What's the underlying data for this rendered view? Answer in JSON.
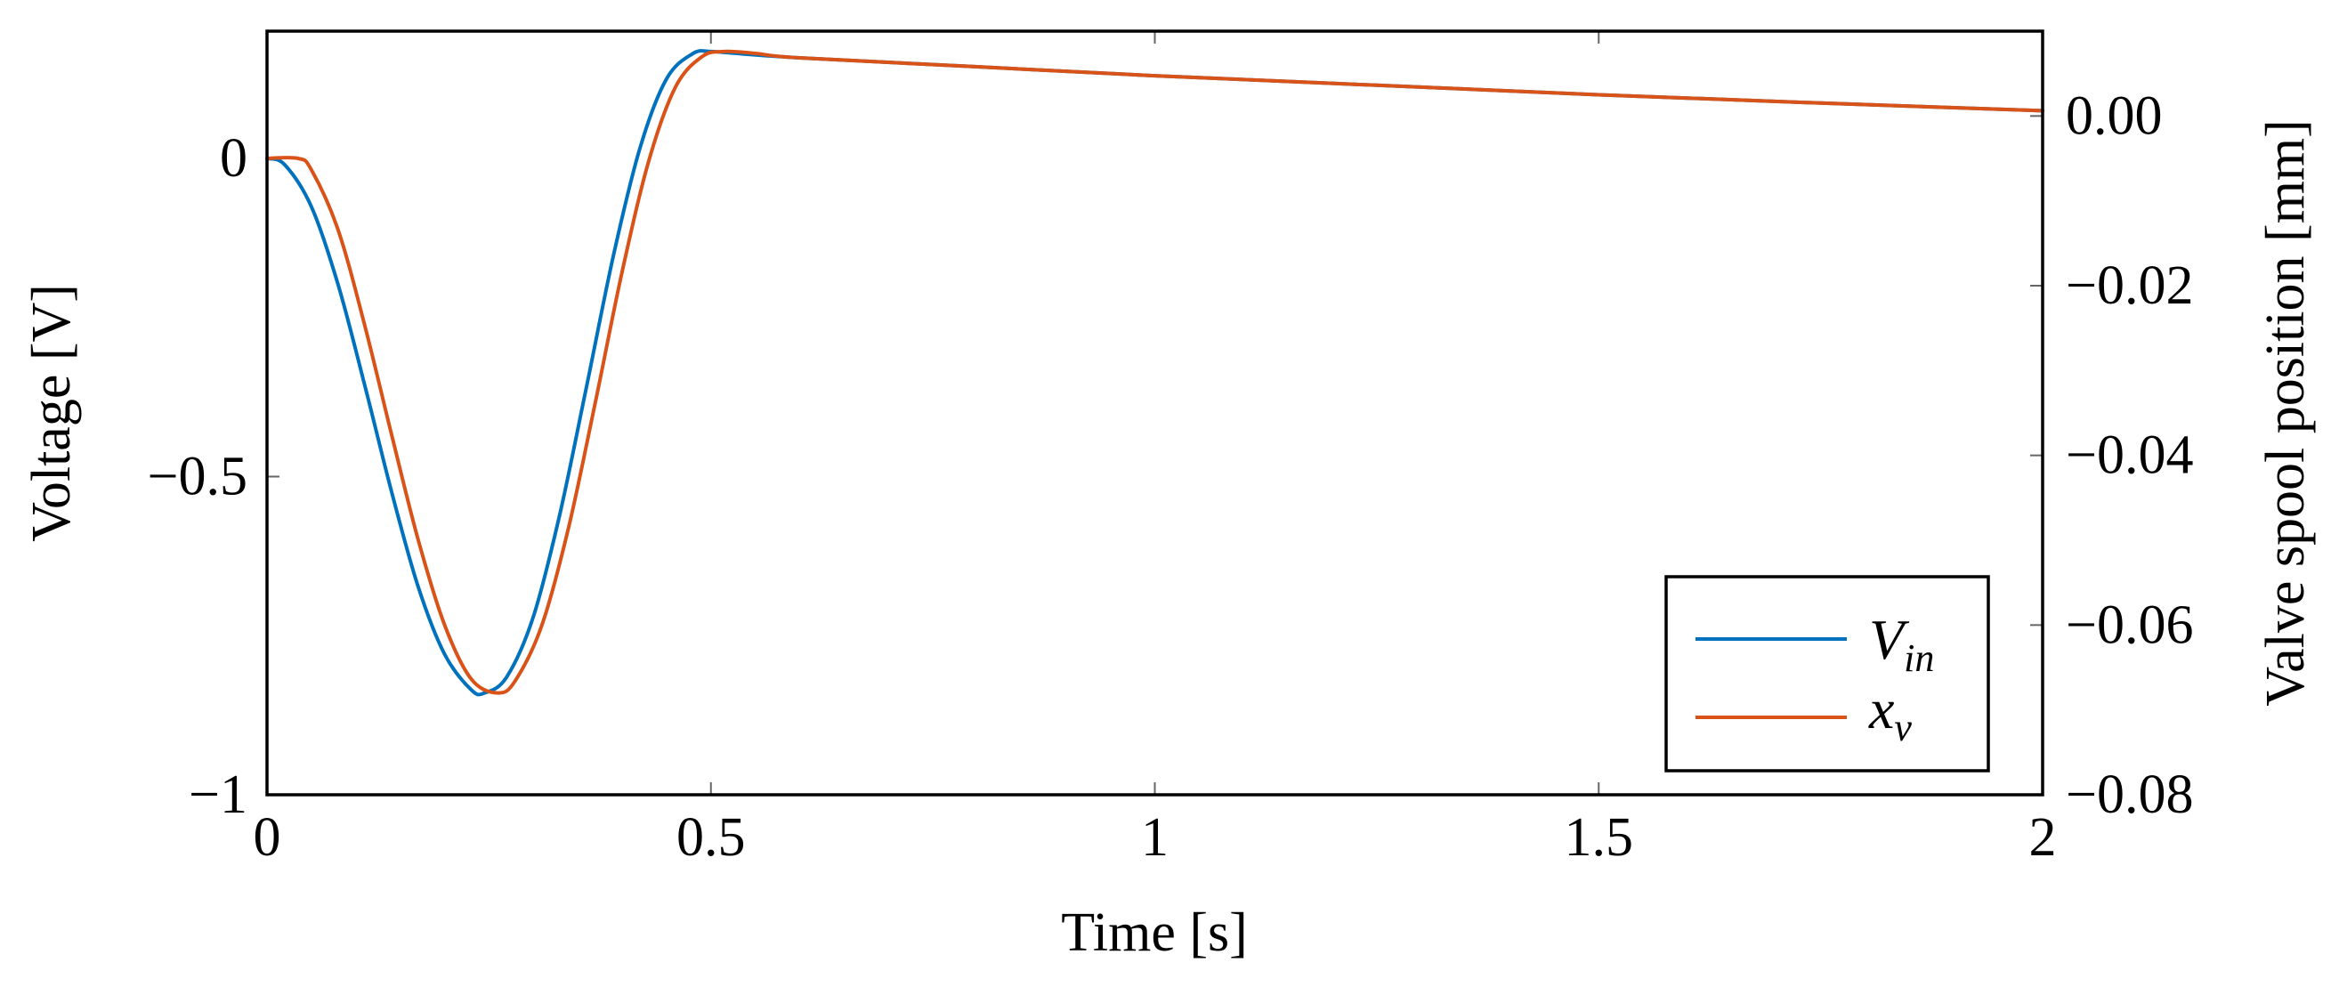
{
  "chart_data": {
    "type": "line",
    "xlabel": "Time [s]",
    "ylabel": "Voltage [V]",
    "y2label": "Valve spool position [mm]",
    "xlim": [
      0,
      2
    ],
    "ylim": [
      -1,
      0.2
    ],
    "y2lim": [
      -0.08,
      0.01
    ],
    "xticks": [
      0,
      0.5,
      1,
      1.5,
      2
    ],
    "xtick_labels": [
      "0",
      "0.5",
      "1",
      "1.5",
      "2"
    ],
    "yticks": [
      0,
      -0.5,
      -1
    ],
    "ytick_labels": [
      "0",
      "−0.5",
      "−1"
    ],
    "y2ticks": [
      0,
      -0.02,
      -0.04,
      -0.06,
      -0.08
    ],
    "y2tick_labels": [
      "0.00",
      "−0.02",
      "−0.04",
      "−0.06",
      "−0.08"
    ],
    "grid": false,
    "legend_position": "bottom-right",
    "series": [
      {
        "name_main": "V",
        "name_sub": "in",
        "color": "#0072BD",
        "axis": "left",
        "x": [
          0,
          0.02,
          0.05,
          0.08,
          0.11,
          0.14,
          0.17,
          0.2,
          0.23,
          0.245,
          0.27,
          0.3,
          0.33,
          0.36,
          0.39,
          0.42,
          0.45,
          0.48,
          0.5,
          0.52,
          0.6,
          0.8,
          1.0,
          1.25,
          1.5,
          1.75,
          2.0
        ],
        "y": [
          0.0,
          -0.01,
          -0.076,
          -0.198,
          -0.356,
          -0.522,
          -0.672,
          -0.779,
          -0.835,
          -0.84,
          -0.815,
          -0.72,
          -0.558,
          -0.358,
          -0.154,
          0.016,
          0.125,
          0.165,
          0.168,
          0.166,
          0.158,
          0.144,
          0.13,
          0.115,
          0.1,
          0.087,
          0.075
        ]
      },
      {
        "name_main": "x",
        "name_sub": "v",
        "color": "#D95319",
        "axis": "left",
        "x": [
          0,
          0.035,
          0.05,
          0.08,
          0.11,
          0.14,
          0.17,
          0.2,
          0.23,
          0.26,
          0.28,
          0.31,
          0.34,
          0.37,
          0.4,
          0.43,
          0.46,
          0.49,
          0.515,
          0.55,
          0.6,
          0.8,
          1.0,
          1.25,
          1.5,
          1.75,
          2.0
        ],
        "y": [
          0.0,
          0.0,
          -0.018,
          -0.112,
          -0.262,
          -0.432,
          -0.598,
          -0.733,
          -0.818,
          -0.84,
          -0.82,
          -0.732,
          -0.578,
          -0.382,
          -0.178,
          -0.004,
          0.112,
          0.16,
          0.168,
          0.165,
          0.158,
          0.144,
          0.13,
          0.115,
          0.1,
          0.087,
          0.075
        ]
      }
    ]
  }
}
